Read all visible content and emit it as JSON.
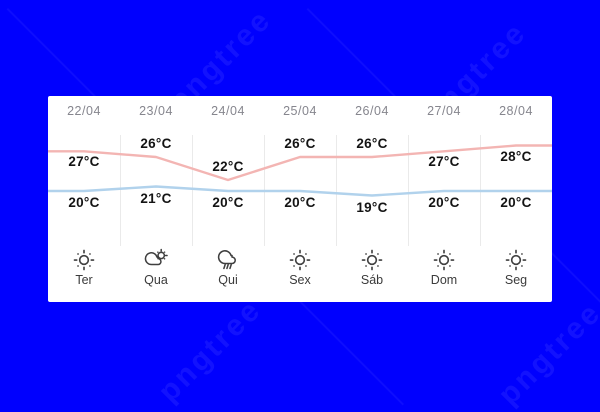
{
  "watermark": {
    "text": "pngtree"
  },
  "colors": {
    "background": "#0000fe",
    "card": "#ffffff",
    "high_line": "#f3b5b3",
    "low_line": "#b1d2ec",
    "date_text": "#86868e",
    "temp_text": "#141414",
    "day_text": "#3b3b3b",
    "separator": "#eaeaea",
    "icon_stroke": "#3f3f3f"
  },
  "chart_data": {
    "type": "line",
    "categories": [
      "22/04",
      "23/04",
      "24/04",
      "25/04",
      "26/04",
      "27/04",
      "28/04"
    ],
    "series": [
      {
        "name": "high",
        "unit": "°C",
        "color": "#f3b5b3",
        "values": [
          27,
          26,
          22,
          26,
          26,
          27,
          28
        ]
      },
      {
        "name": "low",
        "unit": "°C",
        "color": "#b1d2ec",
        "values": [
          20,
          21,
          20,
          20,
          19,
          20,
          20
        ]
      }
    ],
    "ylim": [
      18,
      29
    ],
    "legend": "none",
    "grid": "vertical-column-separators-only"
  },
  "days": [
    {
      "date": "22/04",
      "high": "27°C",
      "low": "20°C",
      "icon": "sun",
      "day": "Ter",
      "high_label_pos": "below"
    },
    {
      "date": "23/04",
      "high": "26°C",
      "low": "21°C",
      "icon": "partly-cloudy",
      "day": "Qua",
      "high_label_pos": "above"
    },
    {
      "date": "24/04",
      "high": "22°C",
      "low": "20°C",
      "icon": "rain",
      "day": "Qui",
      "high_label_pos": "above"
    },
    {
      "date": "25/04",
      "high": "26°C",
      "low": "20°C",
      "icon": "sun",
      "day": "Sex",
      "high_label_pos": "above"
    },
    {
      "date": "26/04",
      "high": "26°C",
      "low": "19°C",
      "icon": "sun",
      "day": "Sáb",
      "high_label_pos": "above"
    },
    {
      "date": "27/04",
      "high": "27°C",
      "low": "20°C",
      "icon": "sun",
      "day": "Dom",
      "high_label_pos": "below"
    },
    {
      "date": "28/04",
      "high": "28°C",
      "low": "20°C",
      "icon": "sun",
      "day": "Seg",
      "high_label_pos": "below"
    }
  ]
}
